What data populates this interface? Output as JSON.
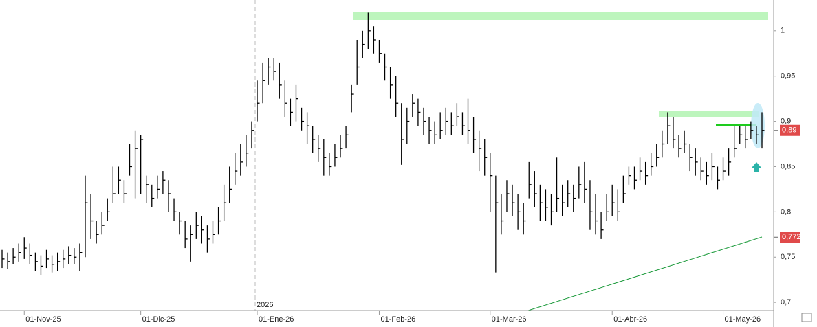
{
  "chart_data": {
    "type": "hlc",
    "categories": [
      null,
      null,
      null,
      null,
      "01-Nov-25",
      null,
      null,
      null,
      null,
      null,
      null,
      null,
      null,
      null,
      null,
      null,
      null,
      null,
      null,
      null,
      null,
      null,
      null,
      null,
      null,
      "01-Dic-25",
      null,
      null,
      null,
      null,
      null,
      null,
      null,
      null,
      null,
      null,
      null,
      null,
      null,
      null,
      null,
      null,
      null,
      null,
      null,
      null,
      "01-Ene-26",
      null,
      null,
      null,
      null,
      null,
      null,
      null,
      null,
      null,
      null,
      null,
      null,
      null,
      null,
      null,
      null,
      null,
      null,
      null,
      null,
      null,
      "01-Feb-26",
      null,
      null,
      null,
      null,
      null,
      null,
      null,
      null,
      null,
      null,
      null,
      null,
      null,
      null,
      null,
      null,
      null,
      null,
      null,
      "01-Mar-26",
      null,
      null,
      null,
      null,
      null,
      null,
      null,
      null,
      null,
      null,
      null,
      null,
      null,
      null,
      null,
      null,
      null,
      null,
      null,
      null,
      null,
      "01-Abr-26",
      null,
      null,
      null,
      null,
      null,
      null,
      null,
      null,
      null,
      null,
      null,
      null,
      null,
      null,
      null,
      null,
      null,
      null,
      null,
      "01-May-26",
      null,
      null,
      null,
      null,
      null,
      null,
      null
    ],
    "high": [
      0.758,
      0.755,
      0.76,
      0.765,
      0.772,
      0.765,
      0.755,
      0.752,
      0.758,
      0.752,
      0.755,
      0.758,
      0.762,
      0.76,
      0.765,
      0.84,
      0.82,
      0.79,
      0.8,
      0.815,
      0.85,
      0.85,
      0.835,
      0.875,
      0.89,
      0.885,
      0.84,
      0.83,
      0.84,
      0.845,
      0.835,
      0.815,
      0.8,
      0.79,
      0.785,
      0.8,
      0.795,
      0.785,
      0.79,
      0.805,
      0.83,
      0.85,
      0.865,
      0.875,
      0.885,
      0.9,
      0.945,
      0.965,
      0.97,
      0.97,
      0.965,
      0.945,
      0.925,
      0.94,
      0.915,
      0.91,
      0.895,
      0.885,
      0.88,
      0.865,
      0.875,
      0.885,
      0.895,
      0.94,
      0.99,
      1.0,
      1.02,
      1.005,
      0.99,
      0.975,
      0.96,
      0.95,
      0.92,
      0.915,
      0.93,
      0.925,
      0.915,
      0.905,
      0.9,
      0.91,
      0.915,
      0.91,
      0.92,
      0.91,
      0.925,
      0.905,
      0.89,
      0.88,
      0.865,
      0.84,
      0.82,
      0.835,
      0.83,
      0.82,
      0.81,
      0.855,
      0.845,
      0.83,
      0.825,
      0.82,
      0.86,
      0.83,
      0.835,
      0.83,
      0.85,
      0.855,
      0.835,
      0.82,
      0.8,
      0.82,
      0.83,
      0.825,
      0.84,
      0.85,
      0.85,
      0.86,
      0.855,
      0.865,
      0.875,
      0.89,
      0.91,
      0.905,
      0.885,
      0.89,
      0.875,
      0.87,
      0.86,
      0.855,
      0.865,
      0.85,
      0.86,
      0.87,
      0.895,
      0.895,
      0.895,
      0.9,
      0.895,
      0.91
    ],
    "low": [
      0.738,
      0.737,
      0.742,
      0.745,
      0.748,
      0.742,
      0.735,
      0.73,
      0.738,
      0.733,
      0.735,
      0.738,
      0.742,
      0.742,
      0.735,
      0.75,
      0.77,
      0.765,
      0.775,
      0.79,
      0.81,
      0.82,
      0.81,
      0.84,
      0.815,
      0.82,
      0.81,
      0.805,
      0.815,
      0.82,
      0.8,
      0.79,
      0.775,
      0.76,
      0.745,
      0.77,
      0.765,
      0.755,
      0.765,
      0.775,
      0.79,
      0.81,
      0.83,
      0.84,
      0.85,
      0.87,
      0.9,
      0.92,
      0.94,
      0.945,
      0.925,
      0.905,
      0.895,
      0.9,
      0.89,
      0.875,
      0.865,
      0.855,
      0.84,
      0.84,
      0.85,
      0.86,
      0.87,
      0.91,
      0.94,
      0.97,
      0.98,
      0.975,
      0.965,
      0.945,
      0.925,
      0.905,
      0.852,
      0.875,
      0.905,
      0.895,
      0.885,
      0.875,
      0.875,
      0.88,
      0.885,
      0.885,
      0.895,
      0.885,
      0.875,
      0.865,
      0.845,
      0.84,
      0.8,
      0.733,
      0.775,
      0.8,
      0.795,
      0.78,
      0.775,
      0.815,
      0.805,
      0.79,
      0.79,
      0.785,
      0.8,
      0.795,
      0.805,
      0.8,
      0.815,
      0.81,
      0.78,
      0.775,
      0.77,
      0.79,
      0.795,
      0.79,
      0.81,
      0.83,
      0.825,
      0.835,
      0.83,
      0.84,
      0.85,
      0.86,
      0.875,
      0.87,
      0.86,
      0.865,
      0.845,
      0.84,
      0.835,
      0.83,
      0.835,
      0.825,
      0.835,
      0.84,
      0.86,
      0.875,
      0.87,
      0.88,
      0.875,
      0.87
    ],
    "close": [
      0.748,
      0.745,
      0.75,
      0.755,
      0.76,
      0.752,
      0.745,
      0.74,
      0.748,
      0.742,
      0.745,
      0.748,
      0.752,
      0.75,
      0.755,
      0.81,
      0.79,
      0.775,
      0.785,
      0.8,
      0.82,
      0.835,
      0.82,
      0.85,
      0.87,
      0.88,
      0.83,
      0.815,
      0.825,
      0.835,
      0.82,
      0.8,
      0.79,
      0.77,
      0.775,
      0.785,
      0.78,
      0.77,
      0.775,
      0.79,
      0.81,
      0.825,
      0.845,
      0.855,
      0.865,
      0.89,
      0.92,
      0.945,
      0.96,
      0.955,
      0.94,
      0.92,
      0.91,
      0.925,
      0.9,
      0.895,
      0.88,
      0.87,
      0.86,
      0.85,
      0.86,
      0.87,
      0.885,
      0.93,
      0.96,
      0.985,
      1.0,
      0.99,
      0.975,
      0.96,
      0.94,
      0.92,
      0.88,
      0.9,
      0.92,
      0.91,
      0.9,
      0.89,
      0.885,
      0.89,
      0.9,
      0.895,
      0.905,
      0.895,
      0.89,
      0.88,
      0.87,
      0.86,
      0.84,
      0.81,
      0.79,
      0.82,
      0.81,
      0.8,
      0.79,
      0.83,
      0.82,
      0.81,
      0.805,
      0.8,
      0.815,
      0.81,
      0.82,
      0.815,
      0.83,
      0.825,
      0.8,
      0.79,
      0.78,
      0.8,
      0.81,
      0.8,
      0.82,
      0.84,
      0.835,
      0.845,
      0.84,
      0.85,
      0.86,
      0.875,
      0.895,
      0.88,
      0.87,
      0.875,
      0.86,
      0.855,
      0.845,
      0.84,
      0.85,
      0.835,
      0.845,
      0.855,
      0.87,
      0.885,
      0.88,
      0.89,
      0.885,
      0.89
    ],
    "color": "#000000",
    "ylim": [
      0.691,
      1.034
    ],
    "yticks": [
      {
        "value": 0.7,
        "label": "0,7"
      },
      {
        "value": 0.75,
        "label": "0,75"
      },
      {
        "value": 0.8,
        "label": "0,8"
      },
      {
        "value": 0.85,
        "label": "0,85"
      },
      {
        "value": 0.9,
        "label": "0,9"
      },
      {
        "value": 0.95,
        "label": "0,95"
      },
      1
    ],
    "price_labels": [
      {
        "value": 0.89,
        "label": "0,89"
      },
      {
        "value": 0.772,
        "label": "0,772"
      }
    ],
    "year_label": "2026"
  }
}
